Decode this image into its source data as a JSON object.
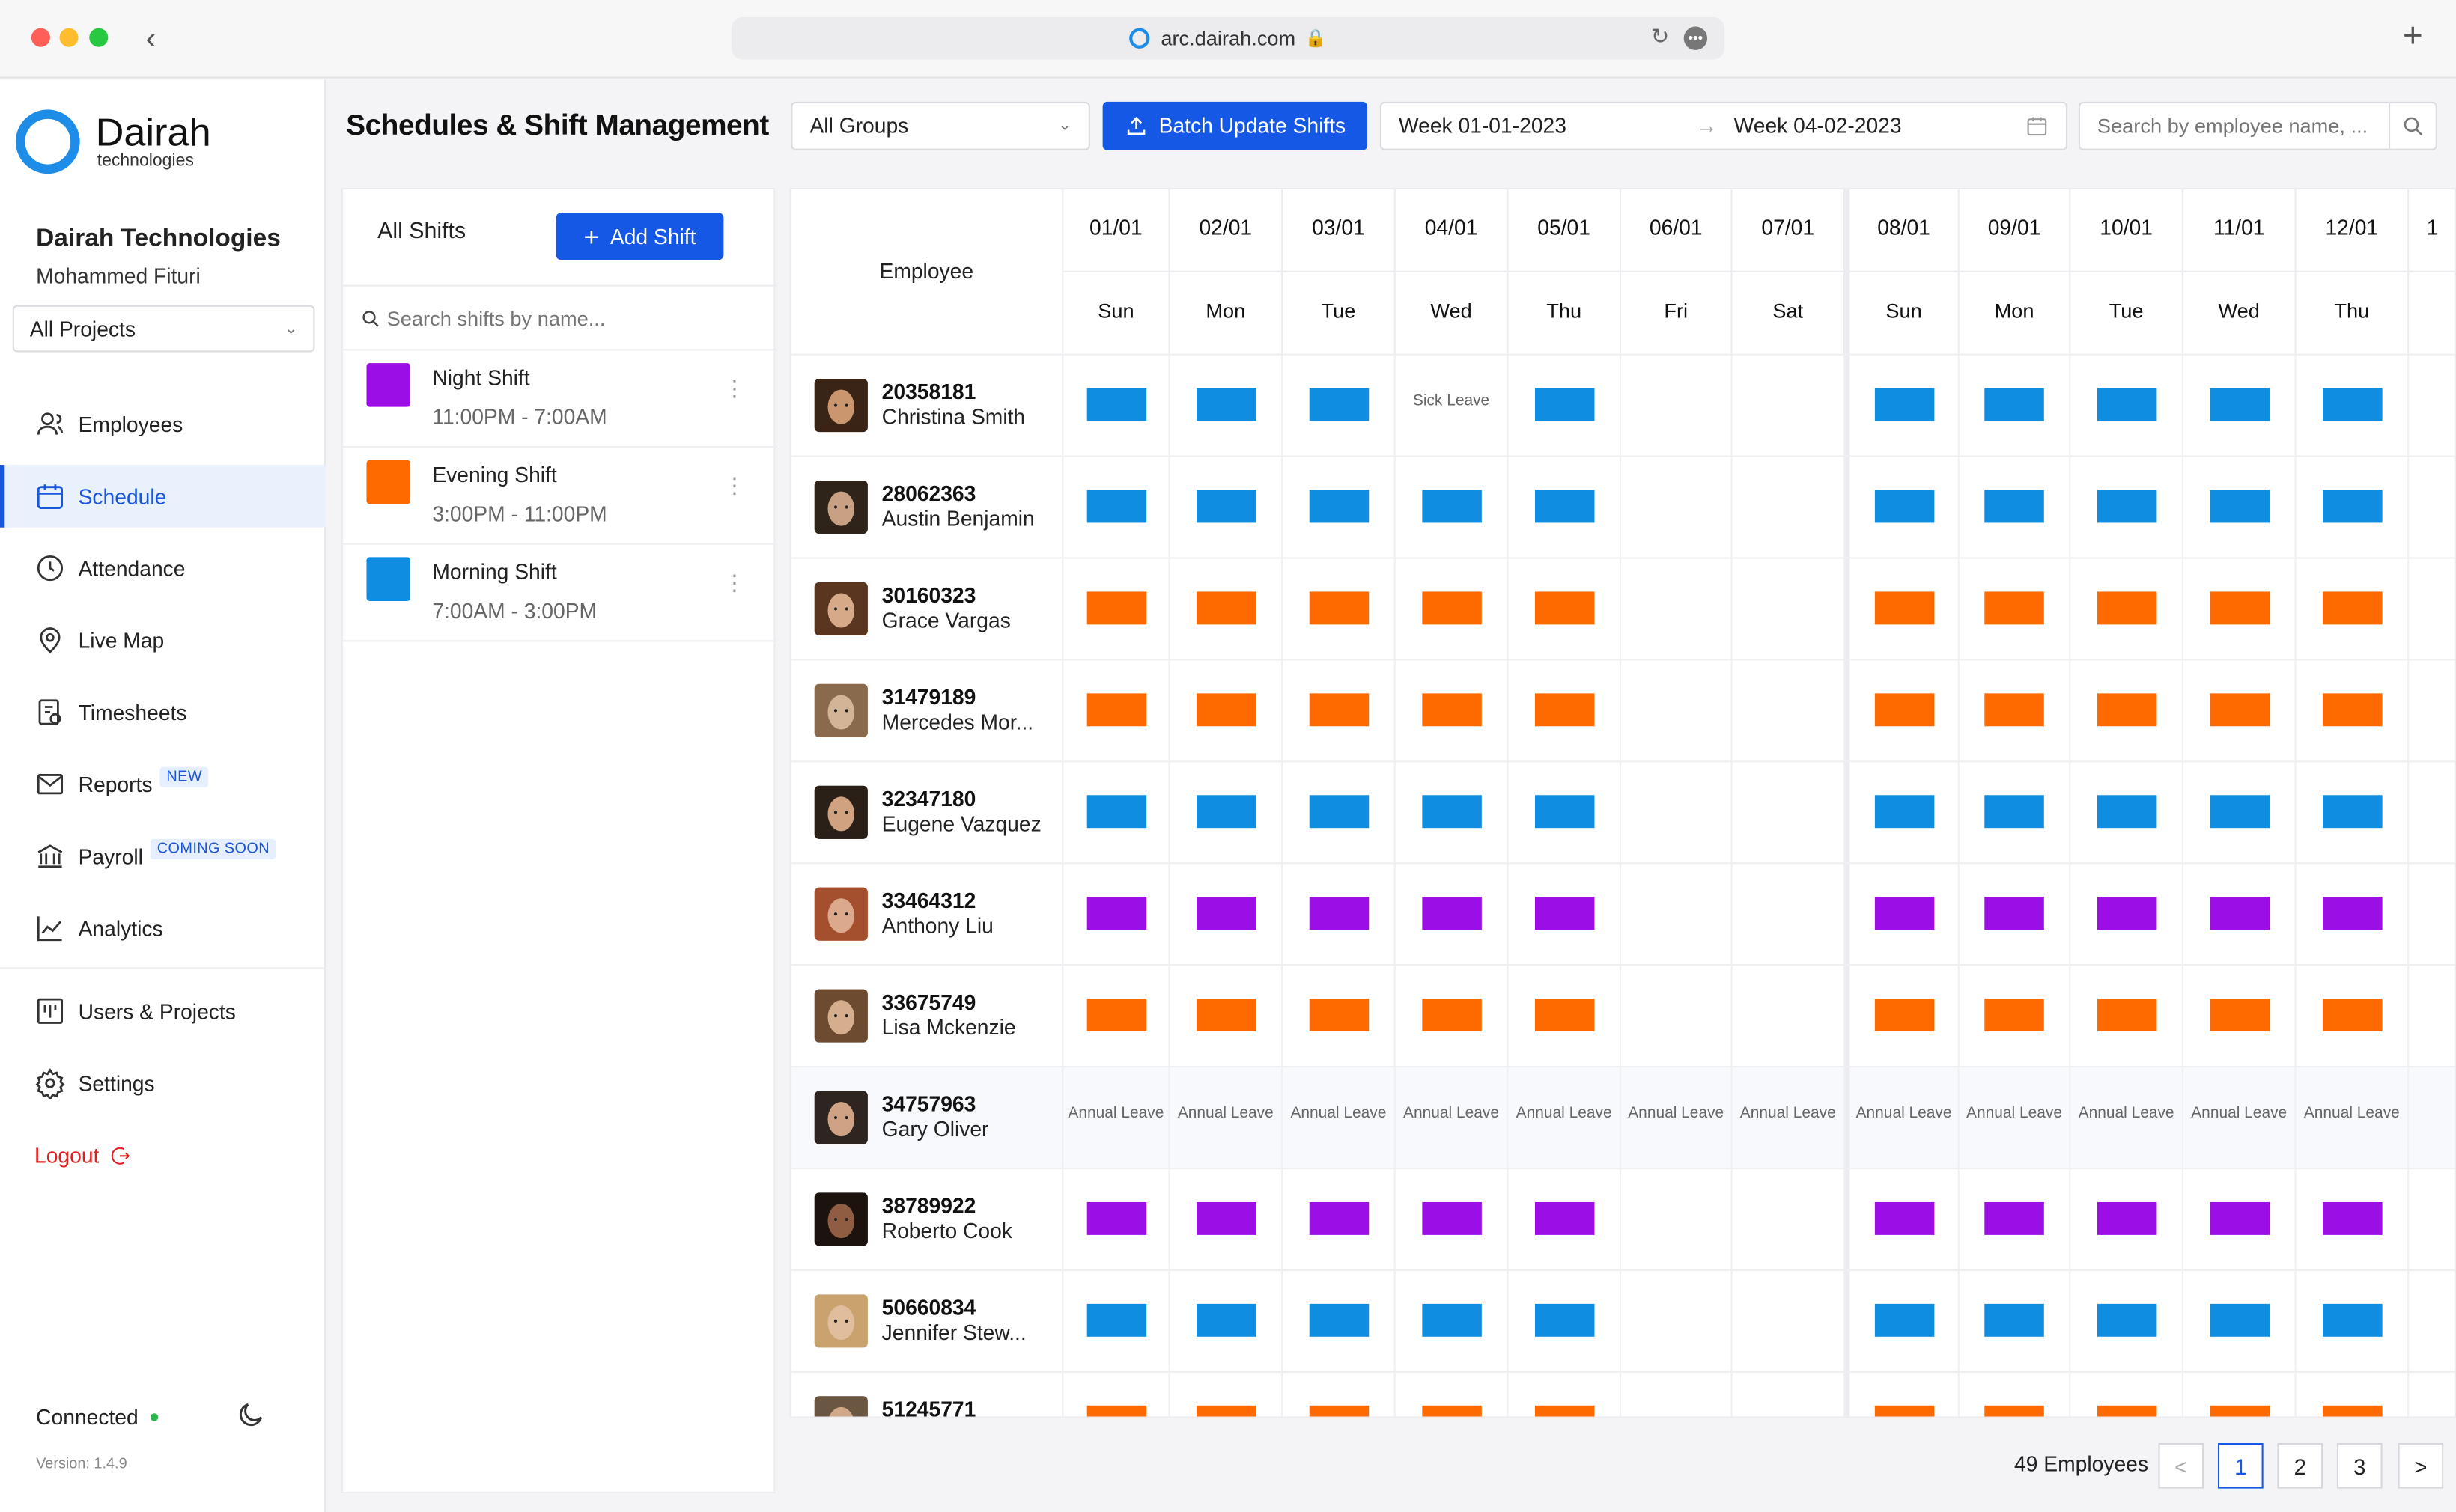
{
  "browser": {
    "url": "arc.dairah.com"
  },
  "brand": {
    "name": "Dairah",
    "sub": "technologies"
  },
  "company": {
    "name": "Dairah Technologies",
    "user": "Mohammed Fituri",
    "project_select": "All Projects"
  },
  "nav": [
    {
      "label": "Employees",
      "icon": "users-icon",
      "active": false
    },
    {
      "label": "Schedule",
      "icon": "calendar-icon",
      "active": true
    },
    {
      "label": "Attendance",
      "icon": "clock-icon",
      "active": false
    },
    {
      "label": "Live Map",
      "icon": "map-pin-icon",
      "active": false
    },
    {
      "label": "Timesheets",
      "icon": "timesheet-icon",
      "active": false
    },
    {
      "label": "Reports",
      "icon": "mail-icon",
      "active": false,
      "badge": "NEW"
    },
    {
      "label": "Payroll",
      "icon": "bank-icon",
      "active": false,
      "badge": "COMING SOON"
    },
    {
      "label": "Analytics",
      "icon": "chart-icon",
      "active": false
    }
  ],
  "nav2": [
    {
      "label": "Users & Projects",
      "icon": "board-icon"
    },
    {
      "label": "Settings",
      "icon": "gear-icon"
    }
  ],
  "logout": "Logout",
  "status": {
    "label": "Connected",
    "version": "Version: 1.4.9"
  },
  "header": {
    "title": "Schedules & Shift Management",
    "groups": "All Groups",
    "batch_label": "Batch Update Shifts",
    "week_from": "Week  01-01-2023",
    "week_to": "Week  04-02-2023",
    "search_placeholder": "Search by employee name, ..."
  },
  "shifts_panel": {
    "title": "All Shifts",
    "add_label": "Add Shift",
    "search_placeholder": "Search shifts by name...",
    "items": [
      {
        "name": "Night Shift",
        "time": "11:00PM - 7:00AM",
        "color": "#9b0ee6"
      },
      {
        "name": "Evening Shift",
        "time": "3:00PM - 11:00PM",
        "color": "#ff6a00"
      },
      {
        "name": "Morning Shift",
        "time": "7:00AM - 3:00PM",
        "color": "#0f8de0"
      }
    ]
  },
  "grid": {
    "employee_header": "Employee",
    "dates": [
      "01/01",
      "02/01",
      "03/01",
      "04/01",
      "05/01",
      "06/01",
      "07/01",
      "08/01",
      "09/01",
      "10/01",
      "11/01",
      "12/01",
      "1"
    ],
    "days": [
      "Sun",
      "Mon",
      "Tue",
      "Wed",
      "Thu",
      "Fri",
      "Sat",
      "Sun",
      "Mon",
      "Tue",
      "Wed",
      "Thu",
      ""
    ],
    "employees": [
      {
        "id": "20358181",
        "name": "Christina Smith",
        "shift": "m",
        "skin": "#c9966e",
        "hair": "#3a2416",
        "exceptions": {
          "3": "Sick Leave"
        }
      },
      {
        "id": "28062363",
        "name": "Austin Benjamin",
        "shift": "m",
        "skin": "#c8a184",
        "hair": "#2f2419"
      },
      {
        "id": "30160323",
        "name": "Grace Vargas",
        "shift": "e",
        "skin": "#d6aa89",
        "hair": "#5a3520"
      },
      {
        "id": "31479189",
        "name": "Mercedes Mor...",
        "shift": "e",
        "skin": "#d3b497",
        "hair": "#8a6a4d"
      },
      {
        "id": "32347180",
        "name": "Eugene Vazquez",
        "shift": "m",
        "skin": "#d1a27f",
        "hair": "#2b2018"
      },
      {
        "id": "33464312",
        "name": "Anthony Liu",
        "shift": "n",
        "skin": "#dba98b",
        "hair": "#a4502f"
      },
      {
        "id": "33675749",
        "name": "Lisa Mckenzie",
        "shift": "e",
        "skin": "#d5ae8d",
        "hair": "#6d4b30"
      },
      {
        "id": "34757963",
        "name": "Gary Oliver",
        "shift": "leave",
        "leave_label": "Annual Leave",
        "skin": "#cfa284",
        "hair": "#2e2520"
      },
      {
        "id": "38789922",
        "name": "Roberto Cook",
        "shift": "n",
        "skin": "#8f5e42",
        "hair": "#1c130e"
      },
      {
        "id": "50660834",
        "name": "Jennifer Stew...",
        "shift": "m",
        "skin": "#e0bd9d",
        "hair": "#c9a26e"
      },
      {
        "id": "51245771",
        "name": "",
        "shift": "e",
        "skin": "#d1a888",
        "hair": "#6b5642"
      }
    ]
  },
  "footer": {
    "count": "49 Employees",
    "pages": [
      "1",
      "2",
      "3"
    ],
    "prev": "<",
    "next": ">"
  }
}
